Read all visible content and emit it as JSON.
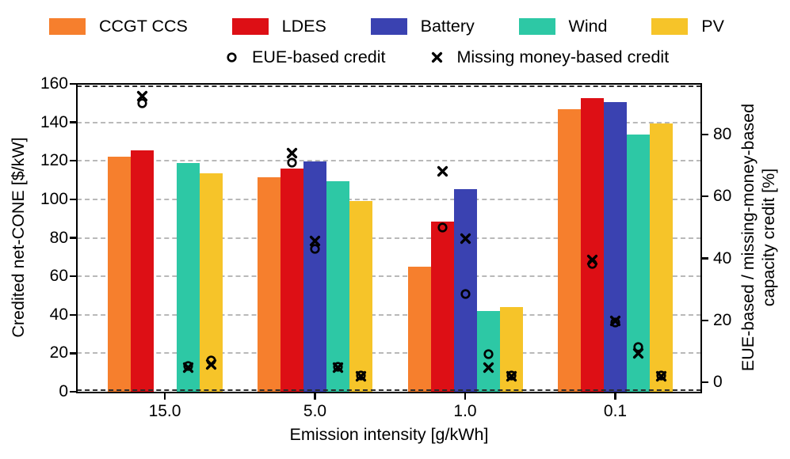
{
  "legend": {
    "series": [
      {
        "label": "CCGT CCS",
        "color": "#f67f2d"
      },
      {
        "label": "LDES",
        "color": "#dd0f15"
      },
      {
        "label": "Battery",
        "color": "#3a42b1"
      },
      {
        "label": "Wind",
        "color": "#2dc8a5"
      },
      {
        "label": "PV",
        "color": "#f6c429"
      }
    ],
    "marker_entries": [
      {
        "label": "EUE-based credit",
        "symbol": "circle"
      },
      {
        "label": "Missing money-based credit",
        "symbol": "x"
      }
    ]
  },
  "chart_data": {
    "type": "bar",
    "title": "",
    "categories": [
      "15.0",
      "5.0",
      "1.0",
      "0.1"
    ],
    "xlabel": "Emission intensity [g/kWh]",
    "left_axis": {
      "label": "Credited net-CONE [$/kW]",
      "unit": "$/kW",
      "ticks": [
        0,
        20,
        40,
        60,
        80,
        100,
        120,
        140,
        160
      ],
      "ylim": [
        0,
        160
      ]
    },
    "right_axis": {
      "label": "EUE-based / missing-money-based capacity credit [%]",
      "label_line1": "EUE-based / missing-money-based",
      "label_line2": "capacity credit [%]",
      "unit": "%",
      "ticks": [
        0,
        20,
        40,
        60,
        80
      ]
    },
    "grid": "horizontal-dashed",
    "legend_position": "top",
    "bar_series": [
      {
        "name": "CCGT CCS",
        "color": "#f67f2d",
        "values": [
          122,
          111.5,
          65,
          147
        ]
      },
      {
        "name": "LDES",
        "color": "#dd0f15",
        "values": [
          125.5,
          116,
          88.5,
          152.5
        ]
      },
      {
        "name": "Battery",
        "color": "#3a42b1",
        "values": [
          0,
          119.5,
          105.5,
          150.5
        ]
      },
      {
        "name": "Wind",
        "color": "#2dc8a5",
        "values": [
          119,
          109.5,
          42,
          133.5
        ]
      },
      {
        "name": "PV",
        "color": "#f6c429",
        "values": [
          113.5,
          99,
          44,
          139.5
        ]
      }
    ],
    "marker_series": [
      {
        "name": "EUE-based credit",
        "symbol": "circle",
        "axis": "right",
        "values_pct_by_series": [
          [
            null,
            null,
            null,
            null
          ],
          [
            90,
            71,
            50,
            38.2
          ],
          [
            null,
            43,
            28.5,
            19.2
          ],
          [
            5.2,
            5.0,
            9.0,
            11.4
          ],
          [
            7.1,
            2.2,
            2.3,
            2.2
          ]
        ]
      },
      {
        "name": "Missing money-based credit",
        "symbol": "x",
        "axis": "right",
        "values_pct_by_series": [
          [
            null,
            null,
            null,
            null
          ],
          [
            92.3,
            74,
            68,
            39.5
          ],
          [
            null,
            45.5,
            46.3,
            19.8
          ],
          [
            4.7,
            4.8,
            4.7,
            9.3
          ],
          [
            5.7,
            1.9,
            1.8,
            2.0
          ]
        ]
      }
    ]
  }
}
